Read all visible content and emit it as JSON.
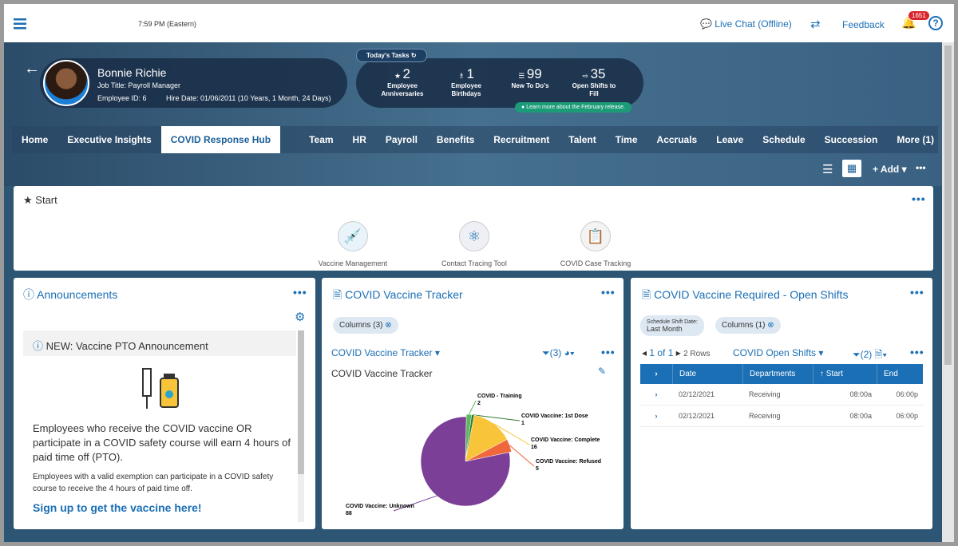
{
  "topbar": {
    "time": "7:59 PM (Eastern)",
    "live_chat": "Live Chat (Offline)",
    "feedback": "Feedback",
    "notifications": "1651"
  },
  "profile": {
    "name": "Bonnie Richie",
    "job_title": "Job Title: Payroll Manager",
    "employee_id": "Employee ID: 6",
    "hire_date": "Hire Date: 01/06/2011 (10 Years, 1 Month, 24 Days)"
  },
  "tasks": {
    "title": "Today's Tasks",
    "items": [
      {
        "count": 2,
        "label": "Employee Anniversaries"
      },
      {
        "count": 1,
        "label": "Employee Birthdays"
      },
      {
        "count": 99,
        "label": "New To Do's"
      },
      {
        "count": 35,
        "label": "Open Shifts to Fill"
      }
    ],
    "link": "Learn more about the February release."
  },
  "nav": {
    "items": [
      "Home",
      "Executive Insights",
      "COVID Response Hub",
      "Team",
      "HR",
      "Payroll",
      "Benefits",
      "Recruitment",
      "Talent",
      "Time",
      "Accruals",
      "Leave",
      "Schedule",
      "Succession",
      "More (1)"
    ]
  },
  "toolbar": {
    "add": "+ Add"
  },
  "start": {
    "title": "Start",
    "tiles": [
      "Vaccine Management",
      "Contact Tracing Tool",
      "COVID Case Tracking"
    ]
  },
  "announcements": {
    "title": "Announcements",
    "item_title": "NEW: Vaccine PTO Announcement",
    "body": "Employees who receive the COVID vaccine OR participate in a COVID safety course will earn 4 hours of paid time off (PTO).",
    "note": "Employees with a valid exemption can participate in a COVID safety course to receive the 4 hours of paid time off.",
    "link": "Sign up to get the vaccine here!"
  },
  "vaccine_tracker": {
    "title": "COVID Vaccine Tracker",
    "columns": "Columns (3)",
    "view": "COVID Vaccine Tracker",
    "filter_count": "(3)",
    "subtitle": "COVID Vaccine Tracker",
    "chart": {
      "type": "pie",
      "categories": [
        "COVID - Training",
        "COVID Vaccine: 1st Dose",
        "COVID Vaccine: Complete",
        "COVID Vaccine: Refused",
        "COVID Vaccine: Unknown"
      ],
      "values": [
        2,
        1,
        16,
        5,
        88
      ],
      "colors": [
        "#5cb85c",
        "#2e7d32",
        "#f8c53a",
        "#f0673c",
        "#7b3f98"
      ]
    }
  },
  "open_shifts": {
    "title": "COVID Vaccine Required - Open Shifts",
    "filter_label": "Schedule Shift Date:",
    "filter_value": "Last Month",
    "columns": "Columns (1)",
    "pager": "1 of 1",
    "rows_count": "2 Rows",
    "view": "COVID Open Shifts",
    "filter_count": "(2)",
    "table": {
      "headers": [
        "Date",
        "Departments",
        "Start",
        "End"
      ],
      "rows": [
        [
          "02/12/2021",
          "Receiving",
          "08:00a",
          "06:00p"
        ],
        [
          "02/12/2021",
          "Receiving",
          "08:00a",
          "06:00p"
        ]
      ]
    }
  }
}
